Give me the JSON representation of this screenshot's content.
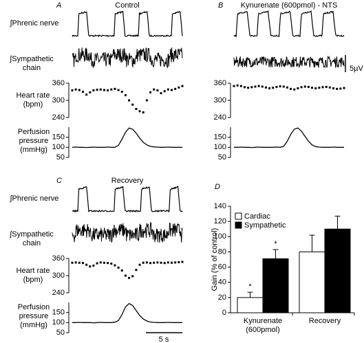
{
  "chart_data": [
    {
      "type": "trace",
      "panel": "A",
      "title": "Control",
      "labels": {
        "phrenic": "∫Phrenic nerve",
        "sympathetic": "∫Sympathetic chain",
        "heart_rate": "Heart rate (bpm)",
        "perfusion": "Perfusion pressure (mmHg)"
      },
      "heart_rate": {
        "ylim": [
          240,
          360
        ],
        "yticks": [
          240,
          300,
          360
        ],
        "values": [
          335,
          338,
          336,
          330,
          320,
          328,
          335,
          337,
          338,
          336,
          335,
          338,
          340,
          336,
          330,
          318,
          300,
          285,
          270,
          262,
          258,
          300,
          328,
          338,
          335,
          325,
          332,
          338,
          336,
          340,
          345,
          350
        ]
      },
      "perfusion": {
        "ylim": [
          50,
          200
        ],
        "yticks": [
          50,
          100,
          150
        ],
        "values": [
          100,
          101,
          100,
          100,
          99,
          100,
          101,
          100,
          100,
          100,
          101,
          100,
          100,
          110,
          140,
          175,
          196,
          190,
          170,
          145,
          125,
          112,
          105,
          102,
          101,
          100,
          100,
          101,
          100,
          100,
          100,
          100
        ]
      }
    },
    {
      "type": "trace",
      "panel": "B",
      "title": "Kynurenate (600pmol) - NTS",
      "scale_bar": "5µV",
      "heart_rate": {
        "ylim": [
          240,
          360
        ],
        "yticks": [
          240,
          300,
          360
        ],
        "values": [
          350,
          352,
          350,
          346,
          344,
          346,
          348,
          350,
          348,
          345,
          342,
          344,
          347,
          349,
          348,
          345,
          340,
          338,
          342,
          346,
          348,
          347,
          344,
          342,
          344,
          346,
          347,
          345,
          342,
          340,
          341,
          343
        ]
      },
      "perfusion": {
        "ylim": [
          50,
          200
        ],
        "yticks": [
          50,
          100,
          150
        ],
        "values": [
          100,
          100,
          101,
          100,
          100,
          99,
          100,
          101,
          100,
          100,
          100,
          100,
          101,
          100,
          105,
          130,
          165,
          190,
          196,
          180,
          155,
          130,
          112,
          104,
          101,
          100,
          100,
          100,
          101,
          100,
          100,
          100
        ]
      }
    },
    {
      "type": "trace",
      "panel": "C",
      "title": "Recovery",
      "scale_bar": "5 s",
      "labels": {
        "phrenic": "∫Phrenic nerve",
        "sympathetic": "∫Sympathetic chain",
        "heart_rate": "Heart rate (bpm)",
        "perfusion": "Perfusion pressure (mmHg)"
      },
      "heart_rate": {
        "ylim": [
          240,
          360
        ],
        "yticks": [
          240,
          300,
          360
        ],
        "values": [
          345,
          346,
          345,
          344,
          338,
          332,
          335,
          343,
          346,
          345,
          344,
          342,
          336,
          328,
          318,
          300,
          292,
          298,
          320,
          338,
          345,
          346,
          344,
          345,
          346,
          345,
          344,
          346,
          345,
          346,
          347,
          348
        ]
      },
      "perfusion": {
        "ylim": [
          50,
          200
        ],
        "yticks": [
          50,
          100,
          150
        ],
        "values": [
          100,
          100,
          101,
          100,
          100,
          100,
          99,
          100,
          101,
          100,
          100,
          100,
          102,
          110,
          140,
          178,
          195,
          185,
          160,
          135,
          118,
          108,
          103,
          101,
          100,
          100,
          100,
          101,
          100,
          100,
          100,
          100
        ]
      }
    },
    {
      "type": "bar",
      "panel": "D",
      "ylabel": "Gain (% of control)",
      "categories": [
        "Kynurenate (600pmol)",
        "Recovery"
      ],
      "series": [
        {
          "name": "Cardiac",
          "color": "#ffffff",
          "values": [
            20,
            80
          ],
          "errors": [
            7,
            22
          ]
        },
        {
          "name": "Sympathetic",
          "color": "#000000",
          "values": [
            71,
            110
          ],
          "errors": [
            12,
            17
          ]
        }
      ],
      "ylim": [
        0,
        140
      ],
      "yticks": [
        0,
        20,
        40,
        60,
        80,
        100,
        120,
        140
      ],
      "annotations": [
        {
          "text": "*",
          "series": 0,
          "category": 0
        },
        {
          "text": "*",
          "series": 1,
          "category": 0
        }
      ]
    }
  ]
}
